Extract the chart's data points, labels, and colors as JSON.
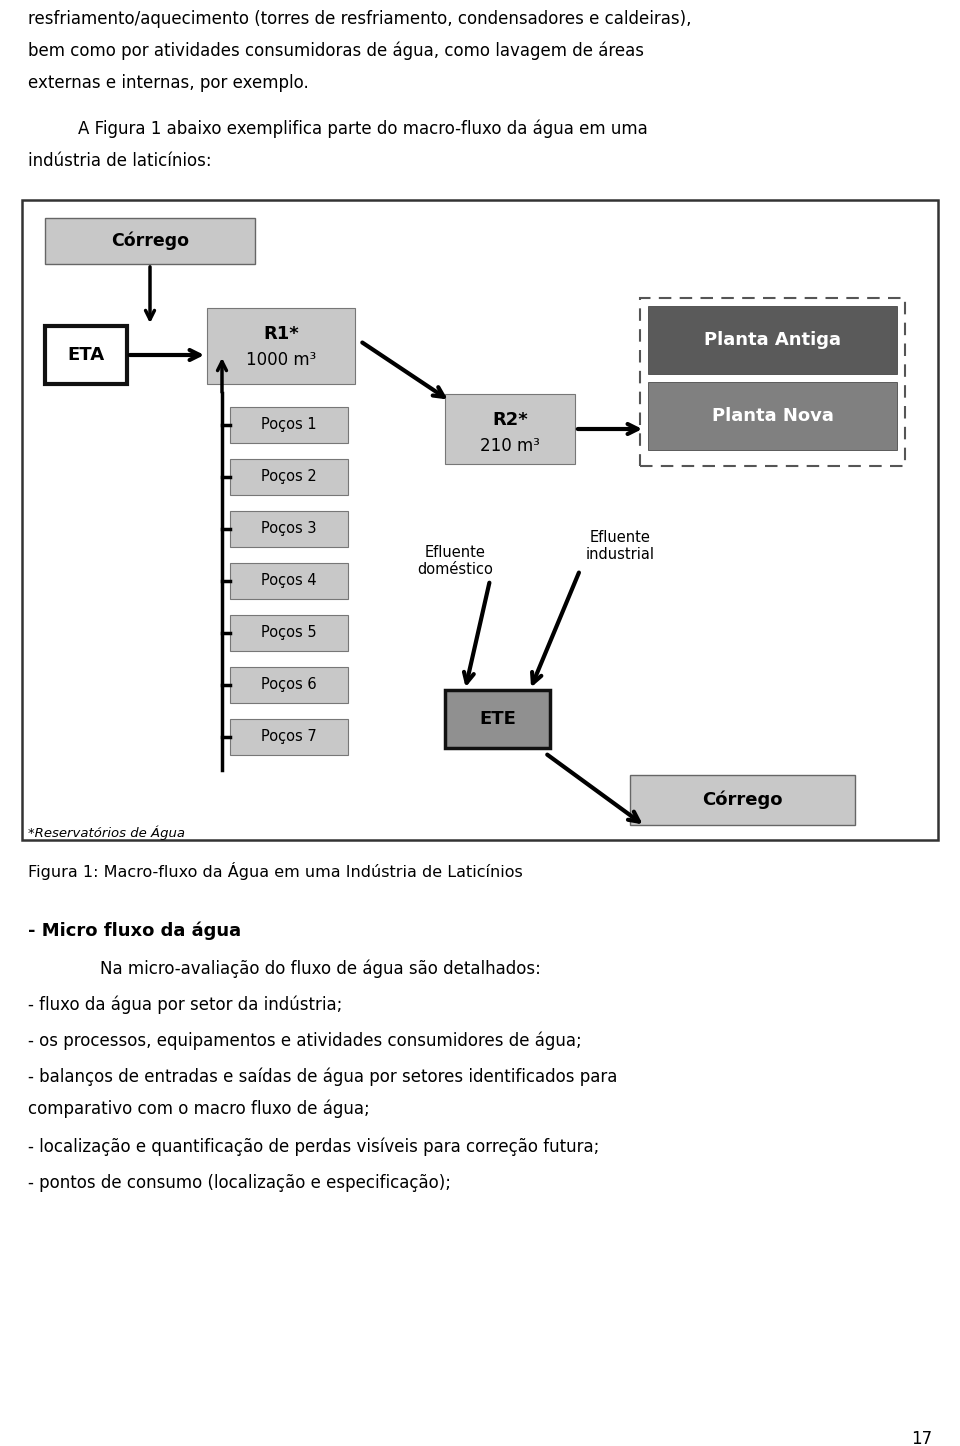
{
  "page_bg": "#ffffff",
  "text_color": "#000000",
  "fig_caption": "Figura 1: Macro-fluxo da Água em uma Indústria de Laticínios",
  "section_title": "- Micro fluxo da água",
  "body_intro": "Na micro-avaliação do fluxo de água são detalhados:",
  "bullet1": "- fluxo da água por setor da indústria;",
  "bullet2": "- os processos, equipamentos e atividades consumidores de água;",
  "bullet3_a": "- balanços de entradas e saídas de água por setores identificados para",
  "bullet3_b": "comparativo com o macro fluxo de água;",
  "bullet4": "- localização e quantificação de perdas visíveis para correção futura;",
  "bullet5": "- pontos de consumo (localização e especificação);",
  "page_num": "17",
  "box_light_gray": "#c8c8c8",
  "box_dark_gray_1": "#5a5a5a",
  "box_dark_gray_2": "#808080",
  "box_eta_fc": "#ffffff",
  "box_ete_fc": "#909090"
}
